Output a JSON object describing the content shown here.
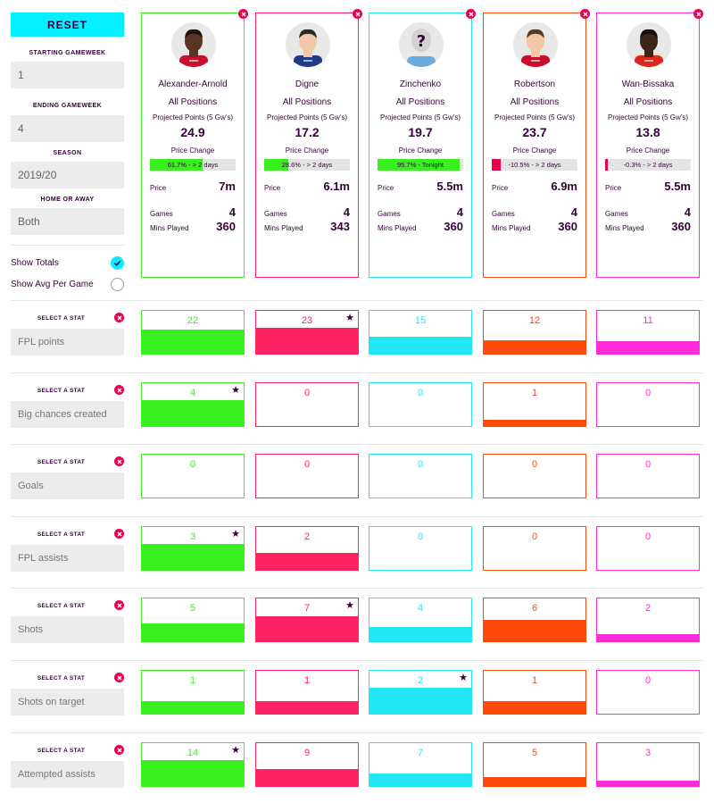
{
  "sidebar": {
    "reset_label": "RESET",
    "starting_label": "STARTING GAMEWEEK",
    "starting_value": "1",
    "ending_label": "ENDING GAMEWEEK",
    "ending_value": "4",
    "season_label": "SEASON",
    "season_value": "2019/20",
    "home_label": "HOME OR AWAY",
    "home_value": "Both",
    "show_totals": "Show Totals",
    "show_avg": "Show Avg Per Game"
  },
  "card_labels": {
    "position": "All Positions",
    "projected": "Projected Points (5 Gw's)",
    "price_change": "Price Change",
    "price": "Price",
    "games": "Games",
    "mins": "Mins Played"
  },
  "players": [
    {
      "name": "Alexander-Arnold",
      "color": "#38f01e",
      "projected": "24.9",
      "pc_text": "61.7% - > 2 days",
      "pc_pct": 61.7,
      "pc_dir": "up",
      "price": "7m",
      "games": "4",
      "mins": "360",
      "skin": "#5a3524",
      "hair": "#1d1410",
      "shirt": "#c8102e"
    },
    {
      "name": "Digne",
      "color": "#ff2260",
      "projected": "17.2",
      "pc_text": "28.6% - > 2 days",
      "pc_pct": 28.6,
      "pc_dir": "up",
      "price": "6.1m",
      "games": "4",
      "mins": "343",
      "skin": "#f1c7a8",
      "hair": "#2a2a2a",
      "shirt": "#1f3c88"
    },
    {
      "name": "Zinchenko",
      "color": "#20e6f5",
      "projected": "19.7",
      "pc_text": "95.7% - Tonight",
      "pc_pct": 95.7,
      "pc_dir": "up",
      "price": "5.5m",
      "games": "4",
      "mins": "360",
      "skin": "#cfcfcf",
      "hair": "#cfcfcf",
      "shirt": "#6cabdd"
    },
    {
      "name": "Robertson",
      "color": "#ff4a0b",
      "projected": "23.7",
      "pc_text": "-10.5% - > 2 days",
      "pc_pct": 10.5,
      "pc_dir": "down",
      "price": "6.9m",
      "games": "4",
      "mins": "360",
      "skin": "#f3c7a6",
      "hair": "#5a3a22",
      "shirt": "#c8102e"
    },
    {
      "name": "Wan-Bissaka",
      "color": "#ff2bd6",
      "projected": "13.8",
      "pc_text": "-0.3% - > 2 days",
      "pc_pct": 0.3,
      "pc_dir": "down",
      "price": "5.5m",
      "games": "4",
      "mins": "360",
      "skin": "#3c2418",
      "hair": "#141010",
      "shirt": "#da291c"
    }
  ],
  "select_stat_label": "SELECT A STAT",
  "stats": [
    {
      "name": "FPL points",
      "values": [
        "22",
        "23",
        "15",
        "12",
        "11"
      ],
      "fill": [
        0.57,
        0.6,
        0.39,
        0.31,
        0.29
      ],
      "star": 1
    },
    {
      "name": "Big chances created",
      "values": [
        "4",
        "0",
        "0",
        "1",
        "0"
      ],
      "fill": [
        0.6,
        0,
        0,
        0.15,
        0
      ],
      "star": 0
    },
    {
      "name": "Goals",
      "values": [
        "0",
        "0",
        "0",
        "0",
        "0"
      ],
      "fill": [
        0,
        0,
        0,
        0,
        0
      ],
      "star": -1
    },
    {
      "name": "FPL assists",
      "values": [
        "3",
        "2",
        "0",
        "0",
        "0"
      ],
      "fill": [
        0.6,
        0.4,
        0,
        0,
        0
      ],
      "star": 0
    },
    {
      "name": "Shots",
      "values": [
        "5",
        "7",
        "4",
        "6",
        "2"
      ],
      "fill": [
        0.42,
        0.58,
        0.34,
        0.5,
        0.17
      ],
      "star": 1
    },
    {
      "name": "Shots on target",
      "values": [
        "1",
        "1",
        "2",
        "1",
        "0"
      ],
      "fill": [
        0.3,
        0.3,
        0.6,
        0.3,
        0
      ],
      "star": 2
    },
    {
      "name": "Attempted assists",
      "values": [
        "14",
        "9",
        "7",
        "5",
        "3"
      ],
      "fill": [
        0.6,
        0.39,
        0.3,
        0.21,
        0.13
      ],
      "star": 0
    }
  ]
}
